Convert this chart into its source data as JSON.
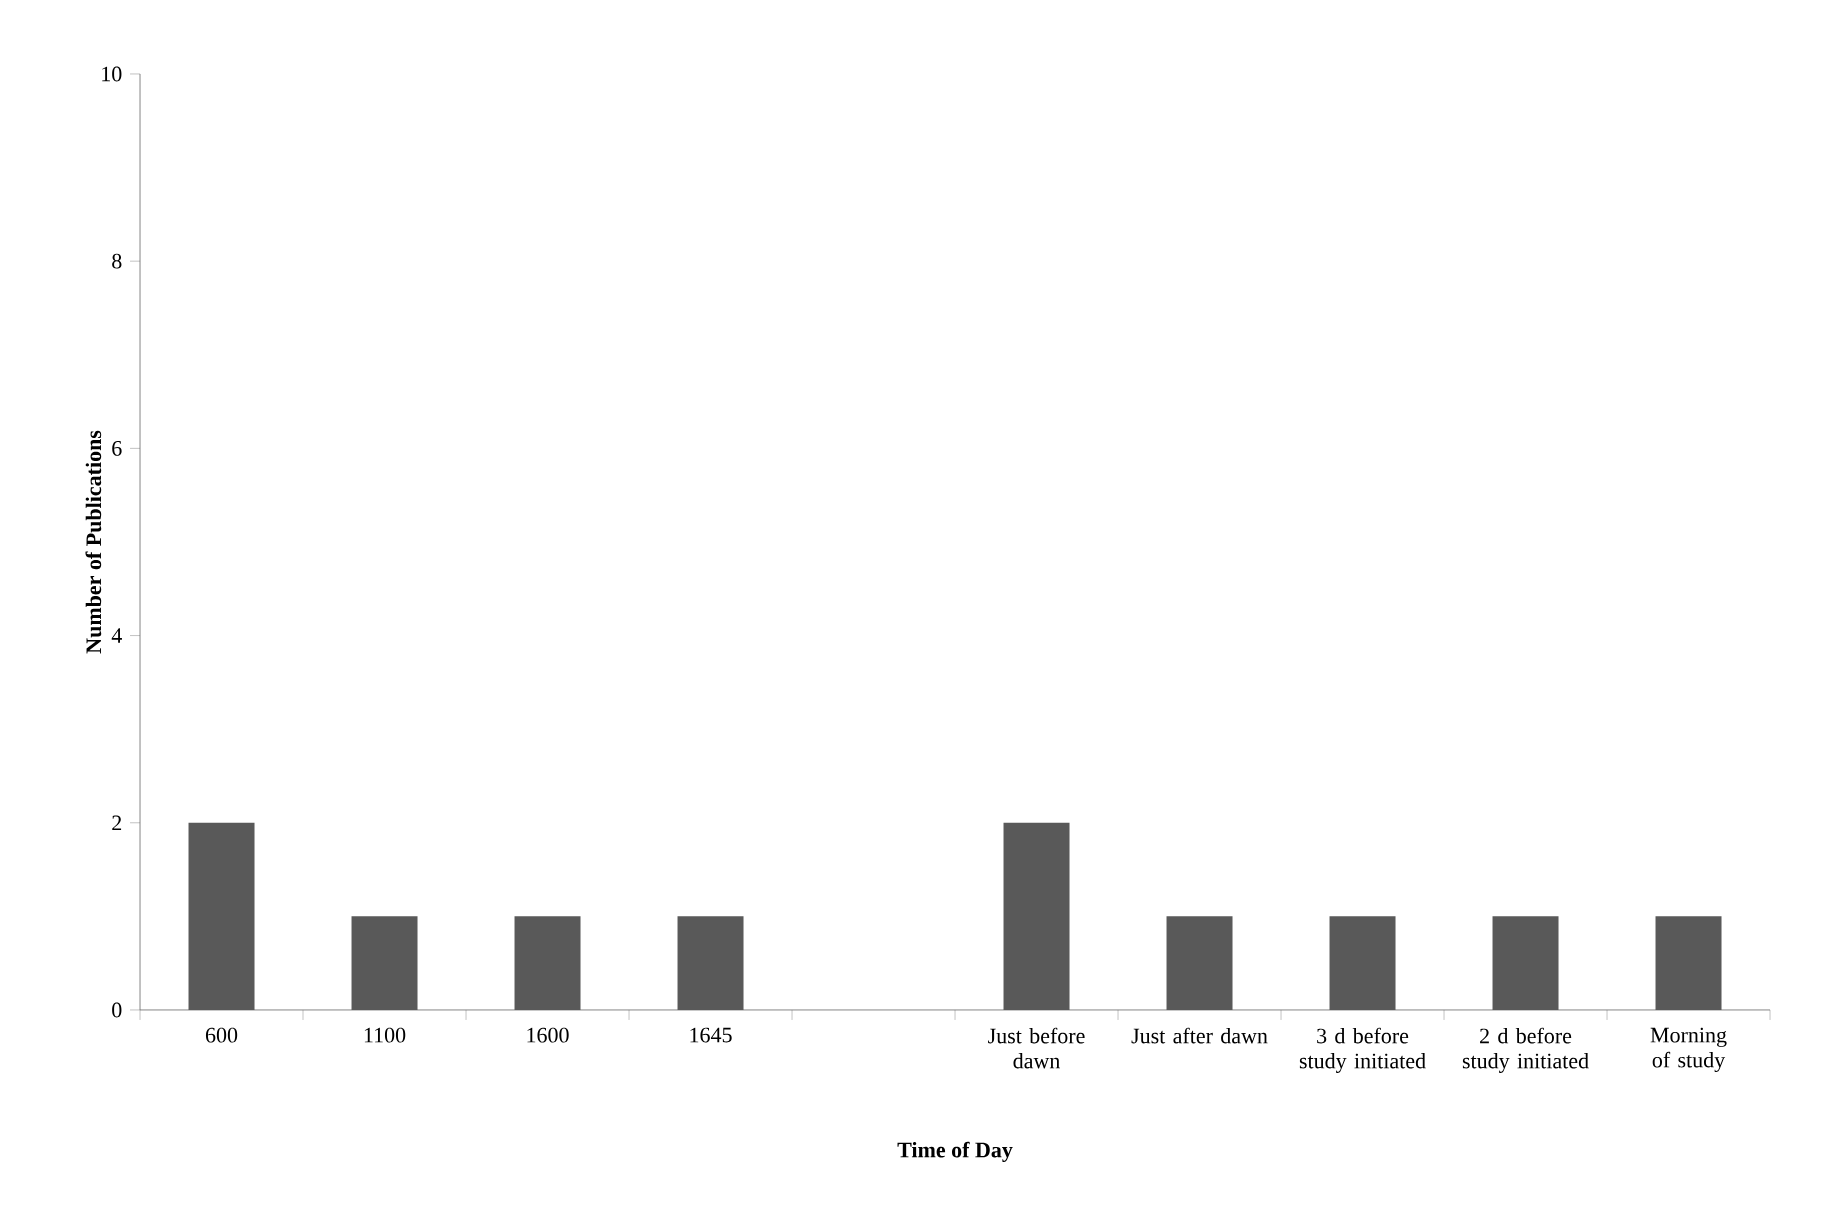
{
  "chart_data": {
    "type": "bar",
    "xlabel": "Time of Day",
    "ylabel": "Number of Publications",
    "categories": [
      "600",
      "1100",
      "1600",
      "1645",
      null,
      "Just before dawn",
      "Just after dawn",
      "3 d before study initiated",
      "2 d before study initiated",
      "Morning of study"
    ],
    "values": [
      2,
      1,
      1,
      1,
      null,
      2,
      1,
      1,
      1,
      1
    ],
    "color": "#595959",
    "ylim": [
      0,
      10
    ],
    "yticks": [
      0,
      2,
      4,
      6,
      8,
      10
    ],
    "grid": false
  }
}
